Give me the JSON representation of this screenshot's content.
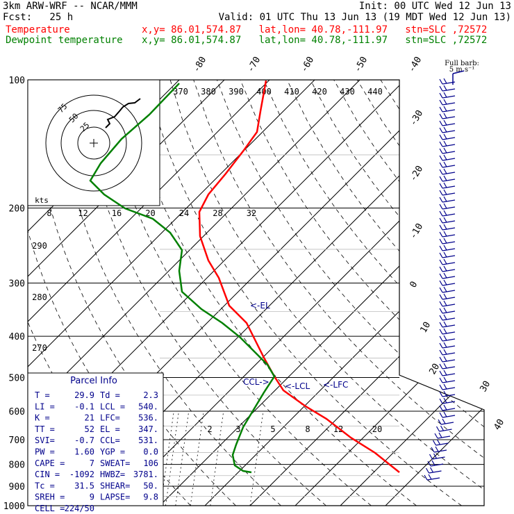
{
  "header": {
    "line1_left": "3km ARW-WRF -- NCAR/MMM",
    "line1_right": "Init: 00 UTC Wed 12 Jun 13",
    "line2_left": "Fcst:   25 h",
    "line2_right": "Valid: 01 UTC Thu 13 Jun 13 (19 MDT Wed 12 Jun 13)",
    "series": [
      {
        "name": "Temperature",
        "info": "x,y= 86.01,574.87   lat,lon= 40.78,-111.97   stn=SLC ,72572"
      },
      {
        "name": "Dewpoint temperature",
        "info": "x,y= 86.01,574.87   lat,lon= 40.78,-111.97   stn=SLC ,72572"
      }
    ]
  },
  "colors": {
    "temperature": "#ff0000",
    "dewpoint": "#008000",
    "annotation": "#00008b",
    "grid": "#000000",
    "hodograph_trace": "#000000"
  },
  "chart_data": {
    "type": "line",
    "subtype": "skew-T log-p sounding",
    "pressure_levels": [
      100,
      200,
      300,
      400,
      500,
      600,
      700,
      800,
      900,
      1000
    ],
    "pressure_labels": [
      "100",
      "200",
      "300",
      "400",
      "500",
      "600",
      "700",
      "800",
      "900",
      "1000"
    ],
    "top_temperature_ticks": [
      "-80",
      "-70",
      "-60",
      "-50",
      "-40"
    ],
    "right_temperature_ticks": [
      "-30",
      "-20",
      "-10",
      "0",
      "10",
      "20",
      "30",
      "40"
    ],
    "theta_e_labels": [
      "370",
      "380",
      "390",
      "400",
      "410",
      "420",
      "430",
      "440"
    ],
    "dry_adiabat_labels": [
      "290",
      "280",
      "270"
    ],
    "mixing_ratio_labels": [
      "2",
      "3",
      "5",
      "8",
      "12",
      "20"
    ],
    "ylim_hpa": [
      1000,
      100
    ],
    "series": [
      {
        "name": "Temperature",
        "points": [
          {
            "p": 100,
            "t": -68
          },
          {
            "p": 150,
            "t": -58
          },
          {
            "p": 200,
            "t": -53
          },
          {
            "p": 250,
            "t": -43
          },
          {
            "p": 300,
            "t": -34
          },
          {
            "p": 350,
            "t": -27
          },
          {
            "p": 400,
            "t": -20
          },
          {
            "p": 450,
            "t": -14
          },
          {
            "p": 500,
            "t": -9
          },
          {
            "p": 550,
            "t": -4
          },
          {
            "p": 600,
            "t": 2
          },
          {
            "p": 700,
            "t": 12
          },
          {
            "p": 800,
            "t": 21
          },
          {
            "p": 850,
            "t": 27
          }
        ]
      },
      {
        "name": "Dewpoint temperature",
        "points": [
          {
            "p": 100,
            "t": -76
          },
          {
            "p": 150,
            "t": -82
          },
          {
            "p": 200,
            "t": -70
          },
          {
            "p": 250,
            "t": -60
          },
          {
            "p": 300,
            "t": -54
          },
          {
            "p": 350,
            "t": -45
          },
          {
            "p": 400,
            "t": -30
          },
          {
            "p": 450,
            "t": -20
          },
          {
            "p": 500,
            "t": -12
          },
          {
            "p": 550,
            "t": -8
          },
          {
            "p": 600,
            "t": -6
          },
          {
            "p": 700,
            "t": -4
          },
          {
            "p": 800,
            "t": -3
          },
          {
            "p": 850,
            "t": -1
          }
        ]
      }
    ],
    "annotations": [
      {
        "label": "<-EL",
        "p": 347
      },
      {
        "label": "CCL->",
        "p": 531
      },
      {
        "label": "<-LCL",
        "p": 540
      },
      {
        "label": "<-LFC",
        "p": 536
      }
    ],
    "hodograph": {
      "ring_labels": [
        "75",
        "50",
        "25"
      ],
      "speed_ticks": [
        "8",
        "12",
        "16",
        "20",
        "24",
        "28",
        "32"
      ],
      "units": "kts"
    },
    "wind_barb_legend": [
      "Full barb:",
      "5 m s⁻¹"
    ]
  },
  "parcel_info": {
    "title": "Parcel Info",
    "rows": [
      [
        "T  =",
        "29.9",
        "Td =",
        "2.3"
      ],
      [
        "LI =",
        "-0.1",
        "LCL =",
        "540."
      ],
      [
        "K  =",
        "21",
        "LFC=",
        "536."
      ],
      [
        "TT =",
        "52",
        "EL =",
        "347."
      ],
      [
        "SVI=",
        "-0.7",
        "CCL=",
        "531."
      ],
      [
        "PW =",
        "1.60",
        "YGP =",
        "0.0"
      ],
      [
        "CAPE =",
        "7",
        "SWEAT=",
        "106"
      ],
      [
        "CIN =",
        "-1092",
        "HWBZ=",
        "3781."
      ],
      [
        "Tc =",
        "31.5",
        "SHEAR=",
        "50."
      ],
      [
        "SREH =",
        "9",
        "LAPSE=",
        "9.8"
      ],
      [
        "CELL =",
        "224/50",
        "",
        ""
      ]
    ]
  }
}
